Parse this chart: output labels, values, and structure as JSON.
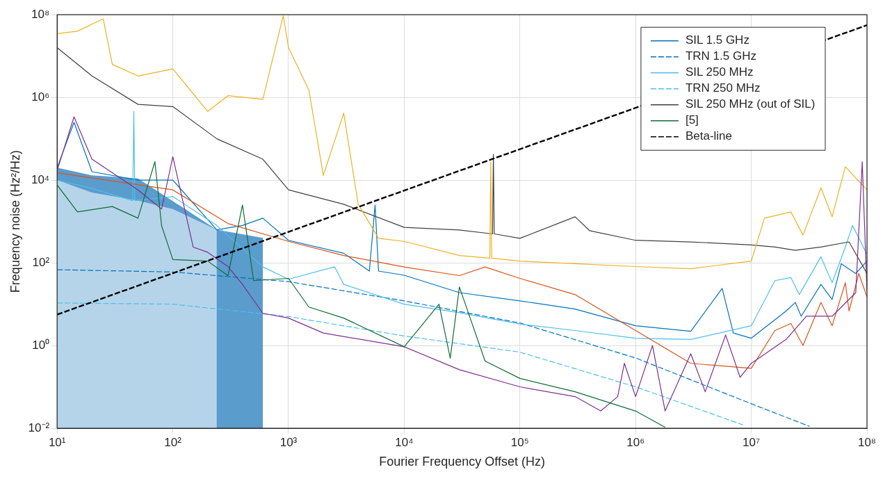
{
  "chart_data": {
    "type": "line",
    "xlabel": "Fourier Frequency Offset (Hz)",
    "ylabel": "Frequency noise (Hz²/Hz)",
    "log": "xy",
    "grid": true,
    "legend": "top right",
    "xlim": [
      10,
      100000000
    ],
    "ylim": [
      0.01,
      100000000
    ],
    "xticks": [
      {
        "value": 10,
        "label": "10¹"
      },
      {
        "value": 100,
        "label": "10²"
      },
      {
        "value": 1000,
        "label": "10³"
      },
      {
        "value": 10000,
        "label": "10⁴"
      },
      {
        "value": 100000,
        "label": "10⁵"
      },
      {
        "value": 1000000,
        "label": "10⁶"
      },
      {
        "value": 10000000,
        "label": "10⁷"
      },
      {
        "value": 100000000,
        "label": "10⁸"
      }
    ],
    "yticks": [
      {
        "value": 0.01,
        "label": "10⁻²"
      },
      {
        "value": 1,
        "label": "10⁰"
      },
      {
        "value": 100,
        "label": "10²"
      },
      {
        "value": 10000,
        "label": "10⁴"
      },
      {
        "value": 1000000,
        "label": "10⁶"
      },
      {
        "value": 100000000,
        "label": "10⁸"
      }
    ],
    "series": [
      {
        "type": "area",
        "color": "#5a9ccc",
        "x": [
          10,
          20,
          50,
          240,
          600
        ],
        "values": [
          20000,
          13000,
          11000,
          630,
          400
        ]
      },
      {
        "type": "area",
        "color": "#b5d4ea",
        "x": [
          10,
          20,
          50,
          100,
          240
        ],
        "values": [
          10000,
          5000,
          3200,
          2000,
          630
        ]
      },
      {
        "name": "SIL 1.5 GHz",
        "color": "#0072bd",
        "line_style": "solid",
        "x": [
          10,
          14,
          20,
          50,
          100,
          240,
          400,
          600,
          1000,
          3000,
          5000,
          5600,
          6000,
          10000,
          30000,
          100000,
          300000,
          1000000,
          3000000,
          5600000,
          7000000,
          10000000,
          20000000,
          24000000,
          27000000,
          40000000,
          50000000,
          60000000,
          80000000,
          100000000
        ],
        "values": [
          20000,
          250000,
          16000,
          10000,
          10000,
          630,
          800,
          1200,
          350,
          170,
          63,
          2500,
          63,
          50,
          19,
          12,
          7.6,
          3,
          2.2,
          24,
          2,
          1.5,
          6.8,
          11,
          5.1,
          30,
          13,
          95,
          55,
          110
        ]
      },
      {
        "name": "TRN 1.5 GHz",
        "color": "#0072bd",
        "line_style": "dashed",
        "x": [
          10,
          100,
          1000,
          10000,
          100000,
          1000000,
          10000000,
          32000000
        ],
        "values": [
          68,
          60,
          35,
          12,
          3.5,
          0.5,
          0.039,
          0.011
        ]
      },
      {
        "name": "SIL 250 MHz",
        "color": "#4dbeee",
        "line_style": "solid",
        "x": [
          10,
          20,
          45,
          46,
          47,
          100,
          240,
          600,
          1000,
          2500,
          3000,
          10000,
          30000,
          100000,
          300000,
          1000000,
          3000000,
          10000000,
          16000000,
          22000000,
          26000000,
          40000000,
          50000000,
          65000000,
          75000000,
          100000000
        ],
        "values": [
          10000,
          6300,
          3200,
          460000,
          3200,
          4000,
          800,
          80,
          40,
          80,
          30,
          10,
          6.2,
          3.3,
          2.3,
          1.5,
          1.4,
          3,
          37,
          44,
          17,
          140,
          33,
          240,
          800,
          160
        ]
      },
      {
        "name": "TRN 250 MHz",
        "color": "#4dbeee",
        "line_style": "dashed",
        "x": [
          10,
          100,
          1000,
          10000,
          100000,
          1000000,
          8500000
        ],
        "values": [
          10.7,
          10,
          5,
          1.7,
          0.69,
          0.1,
          0.012
        ]
      },
      {
        "name": "SIL 250 MHz (out of SIL)",
        "color": "#404040",
        "line_style": "solid",
        "x": [
          10,
          20,
          50,
          100,
          240,
          600,
          1000,
          3000,
          10000,
          30000,
          58000,
          59000,
          60000,
          100000,
          300000,
          400000,
          1000000,
          3000000,
          10000000,
          16000000,
          24000000,
          40000000,
          70000000,
          100000000
        ],
        "values": [
          16000000,
          3300000,
          680000,
          600000,
          100000,
          32000,
          5800,
          2600,
          720,
          620,
          500,
          42000,
          500,
          390,
          1300,
          600,
          350,
          320,
          270,
          240,
          200,
          240,
          320,
          55
        ]
      },
      {
        "color": "#edb120",
        "line_style": "solid",
        "x": [
          10,
          15,
          25,
          30,
          50,
          100,
          200,
          300,
          600,
          900,
          1000,
          1500,
          2000,
          3000,
          4000,
          6000,
          10000,
          30000,
          55000,
          56000,
          57000,
          100000,
          300000,
          1000000,
          3000000,
          10000000,
          13000000,
          22000000,
          28000000,
          40000000,
          50000000,
          65000000,
          100000000
        ],
        "values": [
          35000000,
          40000000,
          80000000,
          6300000,
          3300000,
          4900000,
          460000,
          1100000,
          900000,
          95000000,
          16000000,
          1500000,
          13000,
          420000,
          2600,
          390,
          330,
          150,
          130,
          28000,
          130,
          110,
          95,
          81,
          72,
          110,
          1200,
          1700,
          470,
          6500,
          1300,
          21000,
          5800
        ]
      },
      {
        "color": "#d95319",
        "line_style": "solid",
        "x": [
          10,
          100,
          300,
          1000,
          3000,
          10000,
          30000,
          50000,
          100000,
          300000,
          1000000,
          3000000,
          10000000,
          16000000,
          22000000,
          28000000,
          40000000,
          50000000,
          65000000,
          70000000,
          85000000,
          100000000
        ],
        "values": [
          15000,
          5800,
          890,
          330,
          150,
          79,
          49,
          79,
          42,
          17,
          2.3,
          0.37,
          0.28,
          2.3,
          3.4,
          1,
          11,
          3,
          33,
          6.8,
          55,
          15
        ]
      },
      {
        "color": "#7e2f8e",
        "line_style": "solid",
        "x": [
          10,
          14,
          20,
          50,
          80,
          100,
          150,
          200,
          300,
          400,
          600,
          1000,
          2000,
          10000,
          30000,
          100000,
          300000,
          500000,
          700000,
          800000,
          1000000,
          1400000,
          1800000,
          3000000,
          4000000,
          6000000,
          8000000,
          10000000,
          20000000,
          30000000,
          50000000,
          80000000,
          91000000,
          100000000
        ],
        "values": [
          17000,
          340000,
          32000,
          5800,
          2000,
          37000,
          240,
          180,
          81,
          30,
          6,
          4.6,
          2,
          0.93,
          0.26,
          0.1,
          0.058,
          0.026,
          0.058,
          0.37,
          0.058,
          1,
          0.026,
          0.63,
          0.076,
          1.8,
          0.17,
          0.37,
          1.4,
          5.1,
          5.1,
          19,
          28000,
          20
        ]
      },
      {
        "name": "[5]",
        "color": "#0e6b35",
        "line_style": "solid",
        "x": [
          10,
          15,
          30,
          50,
          70,
          80,
          100,
          200,
          300,
          400,
          500,
          1000,
          1500,
          3000,
          10000,
          20000,
          25000,
          30000,
          50000,
          100000,
          300000,
          1000000,
          1800000
        ],
        "values": [
          7600,
          1700,
          2300,
          1200,
          28000,
          790,
          120,
          110,
          49,
          2500,
          37,
          42,
          8.5,
          4.6,
          0.93,
          10,
          0.49,
          26,
          0.42,
          0.16,
          0.076,
          0.026,
          0.0105
        ]
      },
      {
        "name": "Beta-line",
        "color": "#000000",
        "line_style": "dashed",
        "x": [
          10,
          100000000
        ],
        "values": [
          5.6,
          56000000
        ]
      }
    ]
  }
}
